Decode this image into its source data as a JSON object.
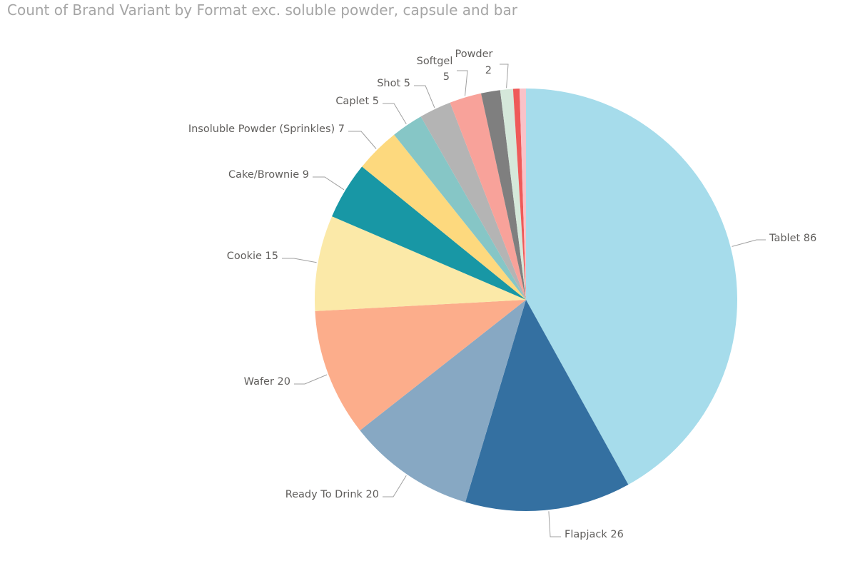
{
  "chart_data": {
    "type": "pie",
    "title": "Count of Brand Variant by Format exc. soluble powder, capsule and bar",
    "legend": "none",
    "slices": [
      {
        "label": "Tablet",
        "value": 86,
        "color": "#a6dceb",
        "text": "Tablet 86"
      },
      {
        "label": "Flapjack",
        "value": 26,
        "color": "#3470a1",
        "text": "Flapjack 26"
      },
      {
        "label": "Ready To Drink",
        "value": 20,
        "color": "#87a8c3",
        "text": "Ready To Drink 20"
      },
      {
        "label": "Wafer",
        "value": 20,
        "color": "#fcad8b",
        "text": "Wafer 20"
      },
      {
        "label": "Cookie",
        "value": 15,
        "color": "#fbe9a8",
        "text": "Cookie 15"
      },
      {
        "label": "Cake/Brownie",
        "value": 9,
        "color": "#1897a5",
        "text": "Cake/Brownie 9"
      },
      {
        "label": "Insoluble Powder (Sprinkles)",
        "value": 7,
        "color": "#fdd97e",
        "text": "Insoluble Powder (Sprinkles) 7"
      },
      {
        "label": "Caplet",
        "value": 5,
        "color": "#86c6c6",
        "text": "Caplet 5"
      },
      {
        "label": "Shot",
        "value": 5,
        "color": "#b4b4b4",
        "text": "Shot 5"
      },
      {
        "label": "Softgel",
        "value": 5,
        "color": "#f8a29a",
        "text": "Softgel 5"
      },
      {
        "label": "",
        "value": 3,
        "color": "#7f7f7f",
        "text": ""
      },
      {
        "label": "Powder",
        "value": 2,
        "color": "#d5e8da",
        "text": "Powder 2"
      },
      {
        "label": "",
        "value": 1,
        "color": "#ef5a59",
        "text": ""
      },
      {
        "label": "",
        "value": 1,
        "color": "#f9c2c8",
        "text": ""
      }
    ]
  }
}
